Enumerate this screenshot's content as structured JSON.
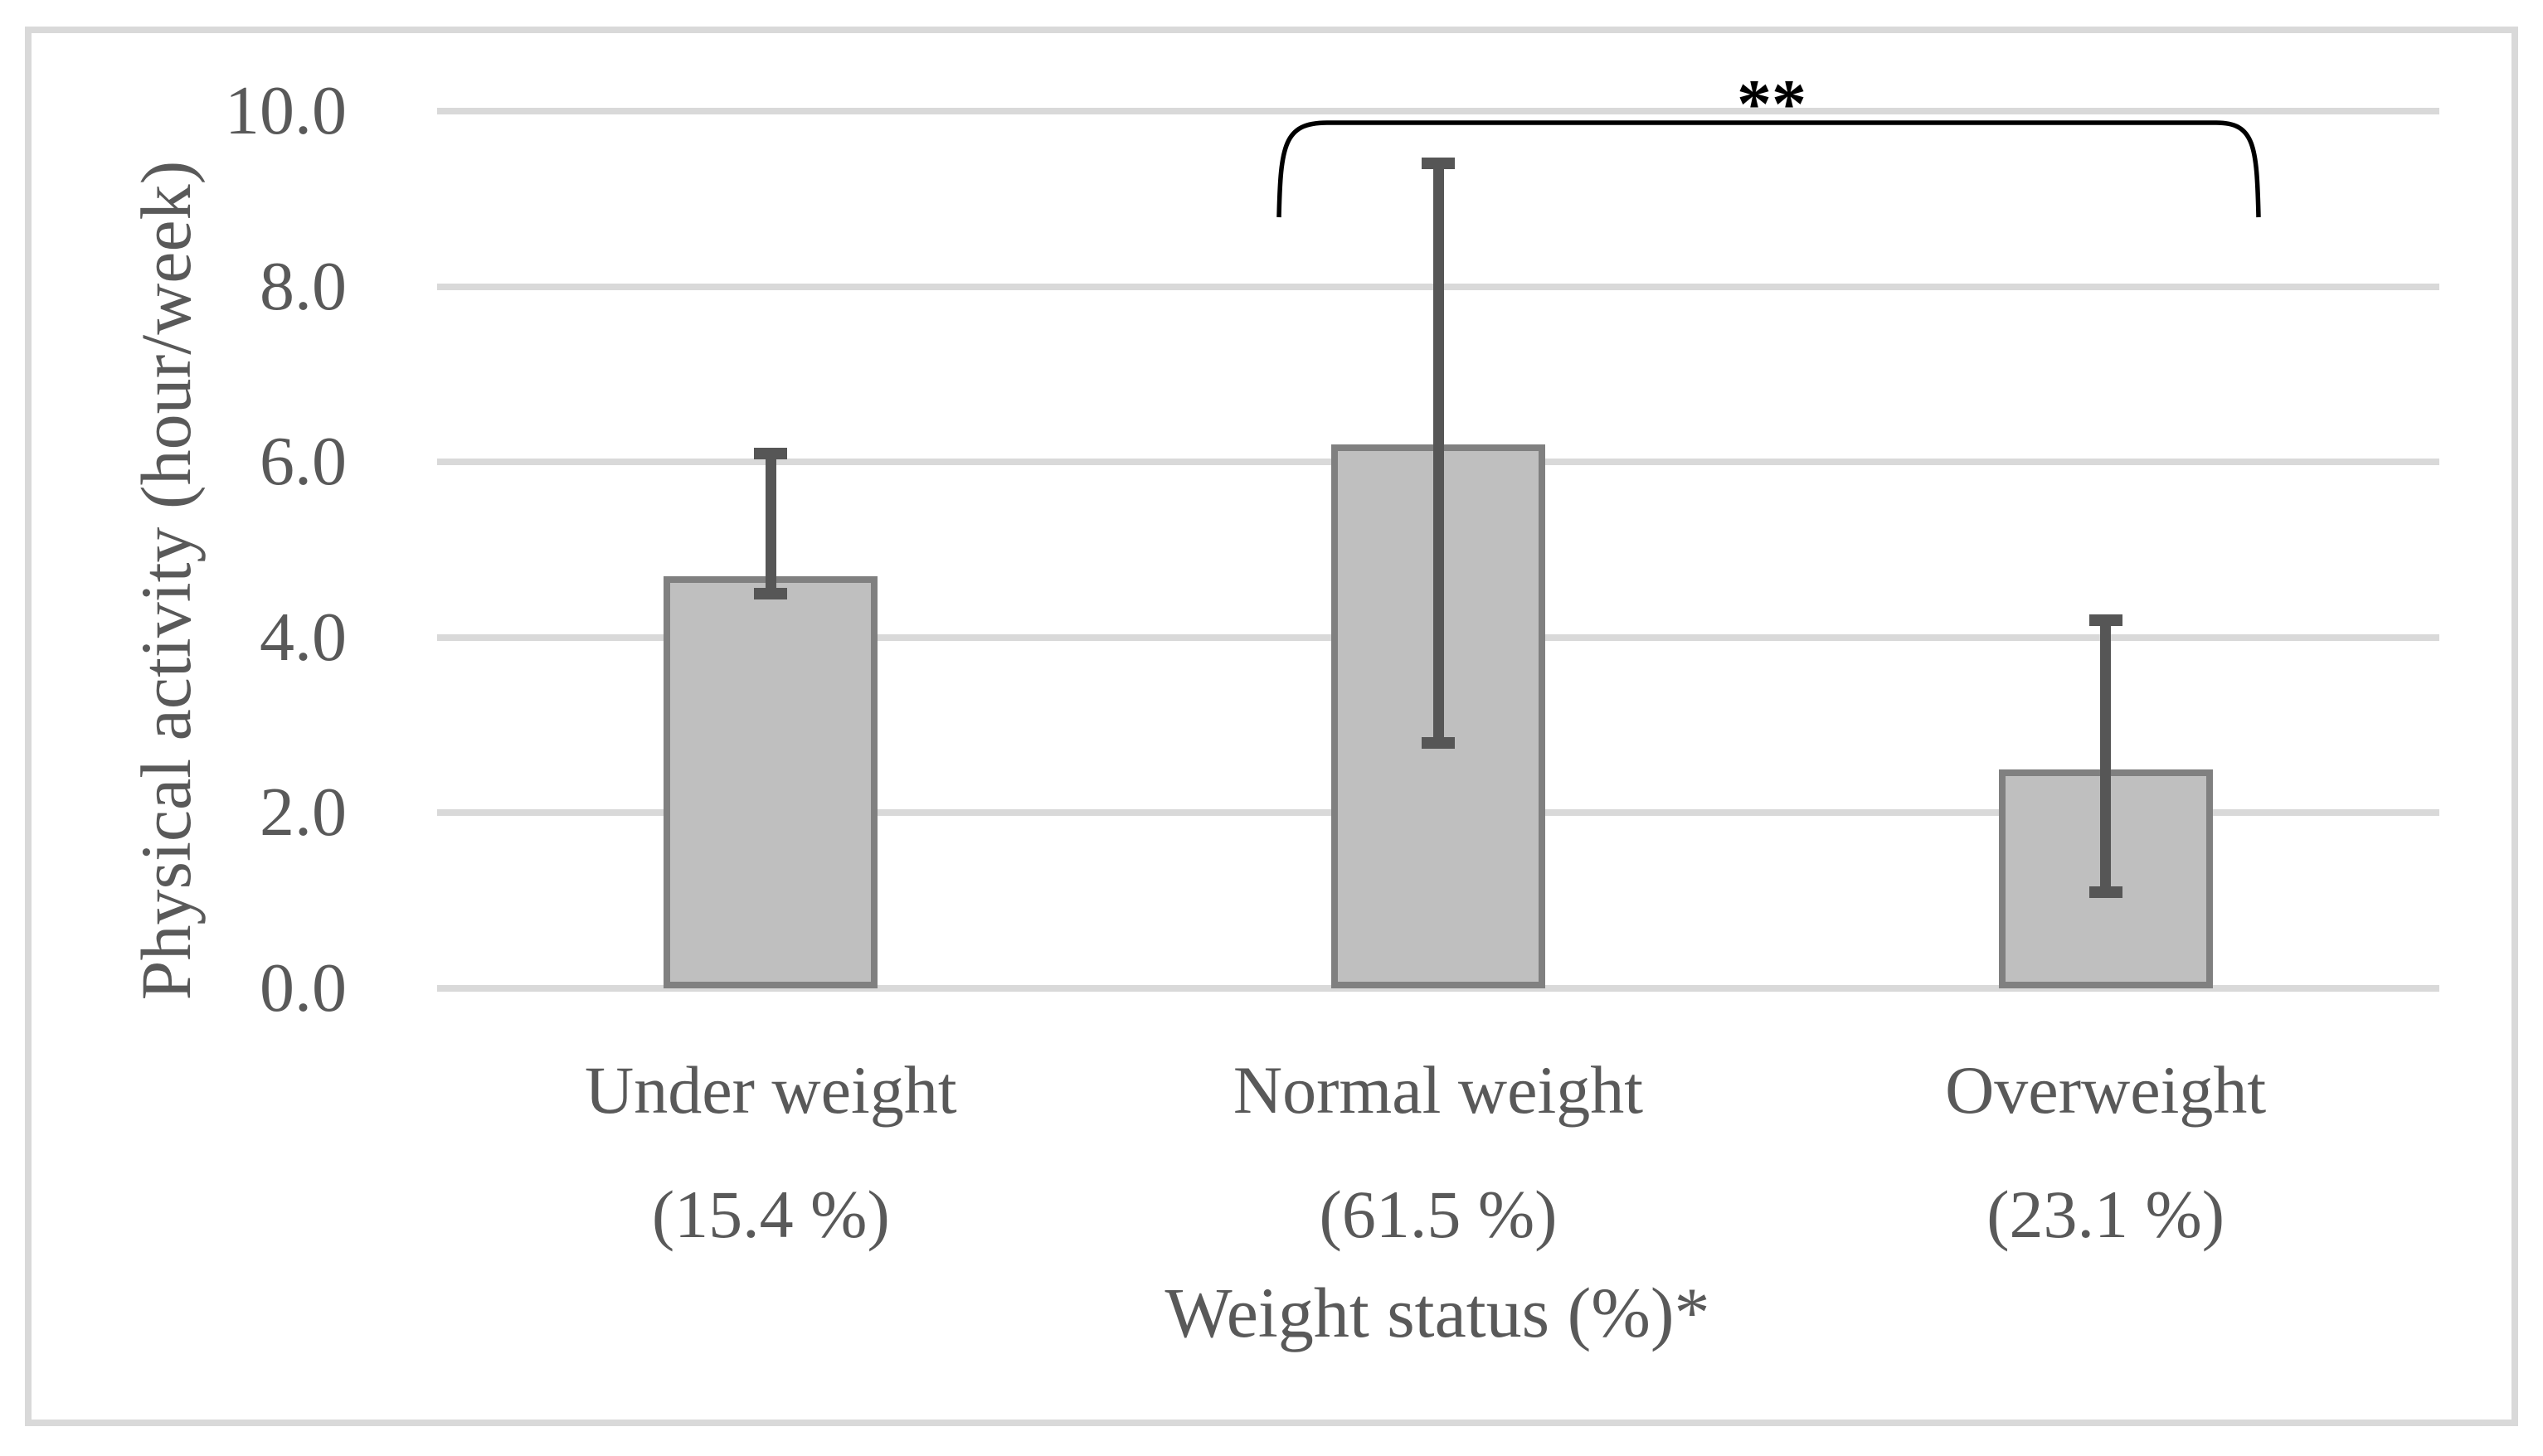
{
  "figure": {
    "background": "#ffffff",
    "border_color": "#d9d9d9"
  },
  "colors": {
    "bar_fill": "#bfbfbf",
    "bar_border": "#808080",
    "error_bar": "#565656",
    "gridline": "#d9d9d9",
    "text": "#595959",
    "significance": "#000000"
  },
  "chart_data": {
    "type": "bar",
    "title": "",
    "categories": [
      "Under weight",
      "Normal weight",
      "Overweight"
    ],
    "category_sublabels": [
      "(15.4 %)",
      "(61.5 %)",
      "(23.1 %)"
    ],
    "values": [
      4.7,
      6.2,
      2.5
    ],
    "error_low": [
      4.5,
      2.8,
      1.1
    ],
    "error_high": [
      6.1,
      9.4,
      4.2
    ],
    "xlabel": "Weight status (%)*",
    "ylabel": "Physical activity (hour/week)",
    "ylim": [
      0,
      10
    ],
    "ytick_step": 2,
    "ytick_labels": [
      "0.0",
      "2.0",
      "4.0",
      "6.0",
      "8.0",
      "10.0"
    ],
    "grid": true,
    "legend": false,
    "significance": {
      "label": "**",
      "between": [
        "Normal weight",
        "Overweight"
      ]
    }
  }
}
